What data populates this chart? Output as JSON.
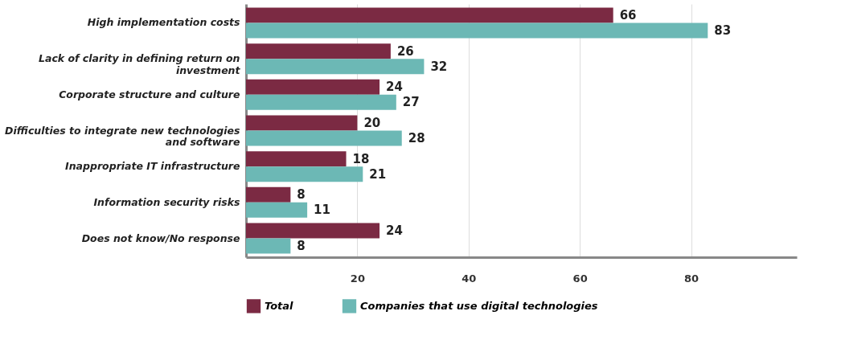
{
  "chart_data": {
    "type": "bar",
    "orientation": "horizontal",
    "categories": [
      "High implementation costs",
      "Lack of clarity in defining return on investment",
      "Corporate structure and culture",
      "Difficulties to integrate new technologies and software",
      "Inappropriate IT infrastructure",
      "Information security risks",
      "Does not know/No response"
    ],
    "series": [
      {
        "name": "Total",
        "color": "#7b2a43",
        "values": [
          66,
          26,
          24,
          20,
          18,
          8,
          24
        ]
      },
      {
        "name": "Companies that use digital technologies",
        "color": "#6cb8b5",
        "values": [
          83,
          32,
          27,
          28,
          21,
          11,
          8
        ]
      }
    ],
    "xlim": [
      0,
      99
    ],
    "xticks": [
      20,
      40,
      60,
      80
    ],
    "grid": "x",
    "legend": "bottom",
    "data_labels": true
  }
}
